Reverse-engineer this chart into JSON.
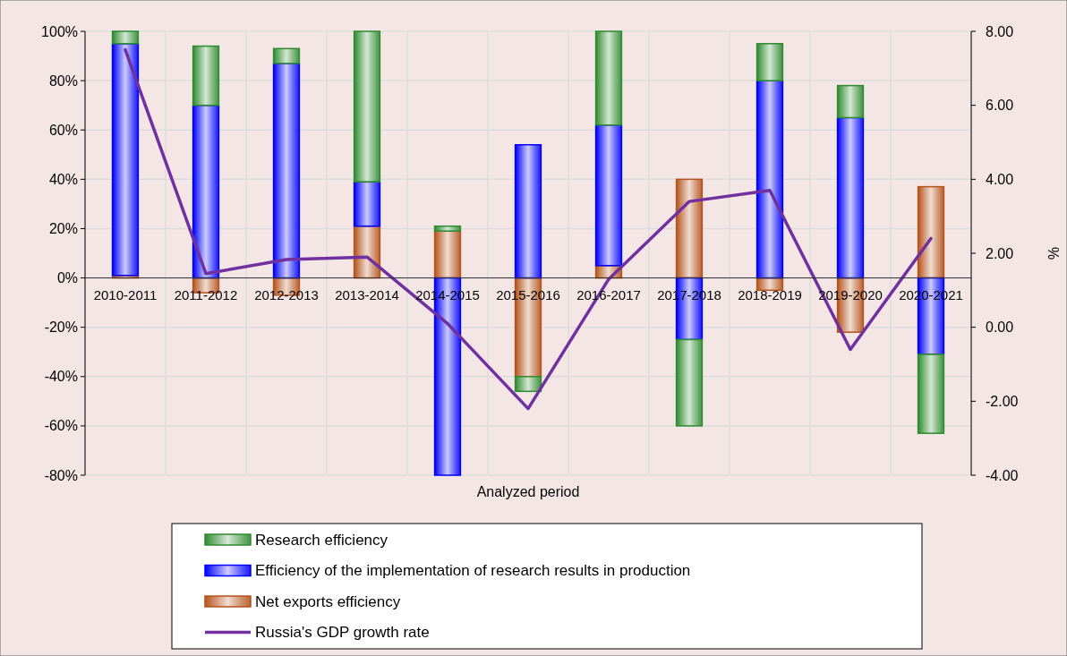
{
  "chart_data": {
    "type": "bar",
    "stacked": true,
    "xlabel": "Analyzed period",
    "y2label": "%",
    "categories": [
      "2010-2011",
      "2011-2012",
      "2012-2013",
      "2013-2014",
      "2014-2015",
      "2015-2016",
      "2016-2017",
      "2017-2018",
      "2018-2019",
      "2019-2020",
      "2020-2021"
    ],
    "series": [
      {
        "name": "Net exports efficiency",
        "color": "#b5531c",
        "values": [
          1,
          -6,
          -7,
          21,
          19,
          -40,
          5,
          40,
          -5,
          -22,
          37
        ]
      },
      {
        "name": "Efficiency of the implementation of research results in production",
        "color": "#0000ff",
        "values": [
          94,
          70,
          87,
          18,
          -80,
          54,
          57,
          -25,
          80,
          65,
          -31
        ]
      },
      {
        "name": "Research efficiency",
        "color": "#2e8b2e",
        "values": [
          5,
          24,
          6,
          61,
          2,
          -6,
          38,
          -35,
          15,
          13,
          -32
        ]
      },
      {
        "name": "Russia's GDP growth rate",
        "type": "line",
        "axis": "y2",
        "color": "#7030a0",
        "values": [
          7.5,
          1.45,
          1.83,
          1.9,
          0.1,
          -2.2,
          1.3,
          3.4,
          3.7,
          -0.6,
          2.4
        ]
      }
    ],
    "ylim": [
      -80,
      100
    ],
    "yticks": [
      {
        "value": -80,
        "label": "-80%"
      },
      {
        "value": -60,
        "label": "-60%"
      },
      {
        "value": -40,
        "label": "-40%"
      },
      {
        "value": -20,
        "label": "-20%"
      },
      {
        "value": 0,
        "label": "0%"
      },
      {
        "value": 20,
        "label": "20%"
      },
      {
        "value": 40,
        "label": "40%"
      },
      {
        "value": 60,
        "label": "60%"
      },
      {
        "value": 80,
        "label": "80%"
      },
      {
        "value": 100,
        "label": "100%"
      }
    ],
    "y2lim": [
      -4,
      8
    ],
    "y2ticks": [
      {
        "value": -4,
        "label": "-4.00"
      },
      {
        "value": -2,
        "label": "-2.00"
      },
      {
        "value": 0,
        "label": "0.00"
      },
      {
        "value": 2,
        "label": "2.00"
      },
      {
        "value": 4,
        "label": "4.00"
      },
      {
        "value": 6,
        "label": "6.00"
      },
      {
        "value": 8,
        "label": "8.00"
      }
    ],
    "grid": true,
    "legend": "bottom"
  }
}
